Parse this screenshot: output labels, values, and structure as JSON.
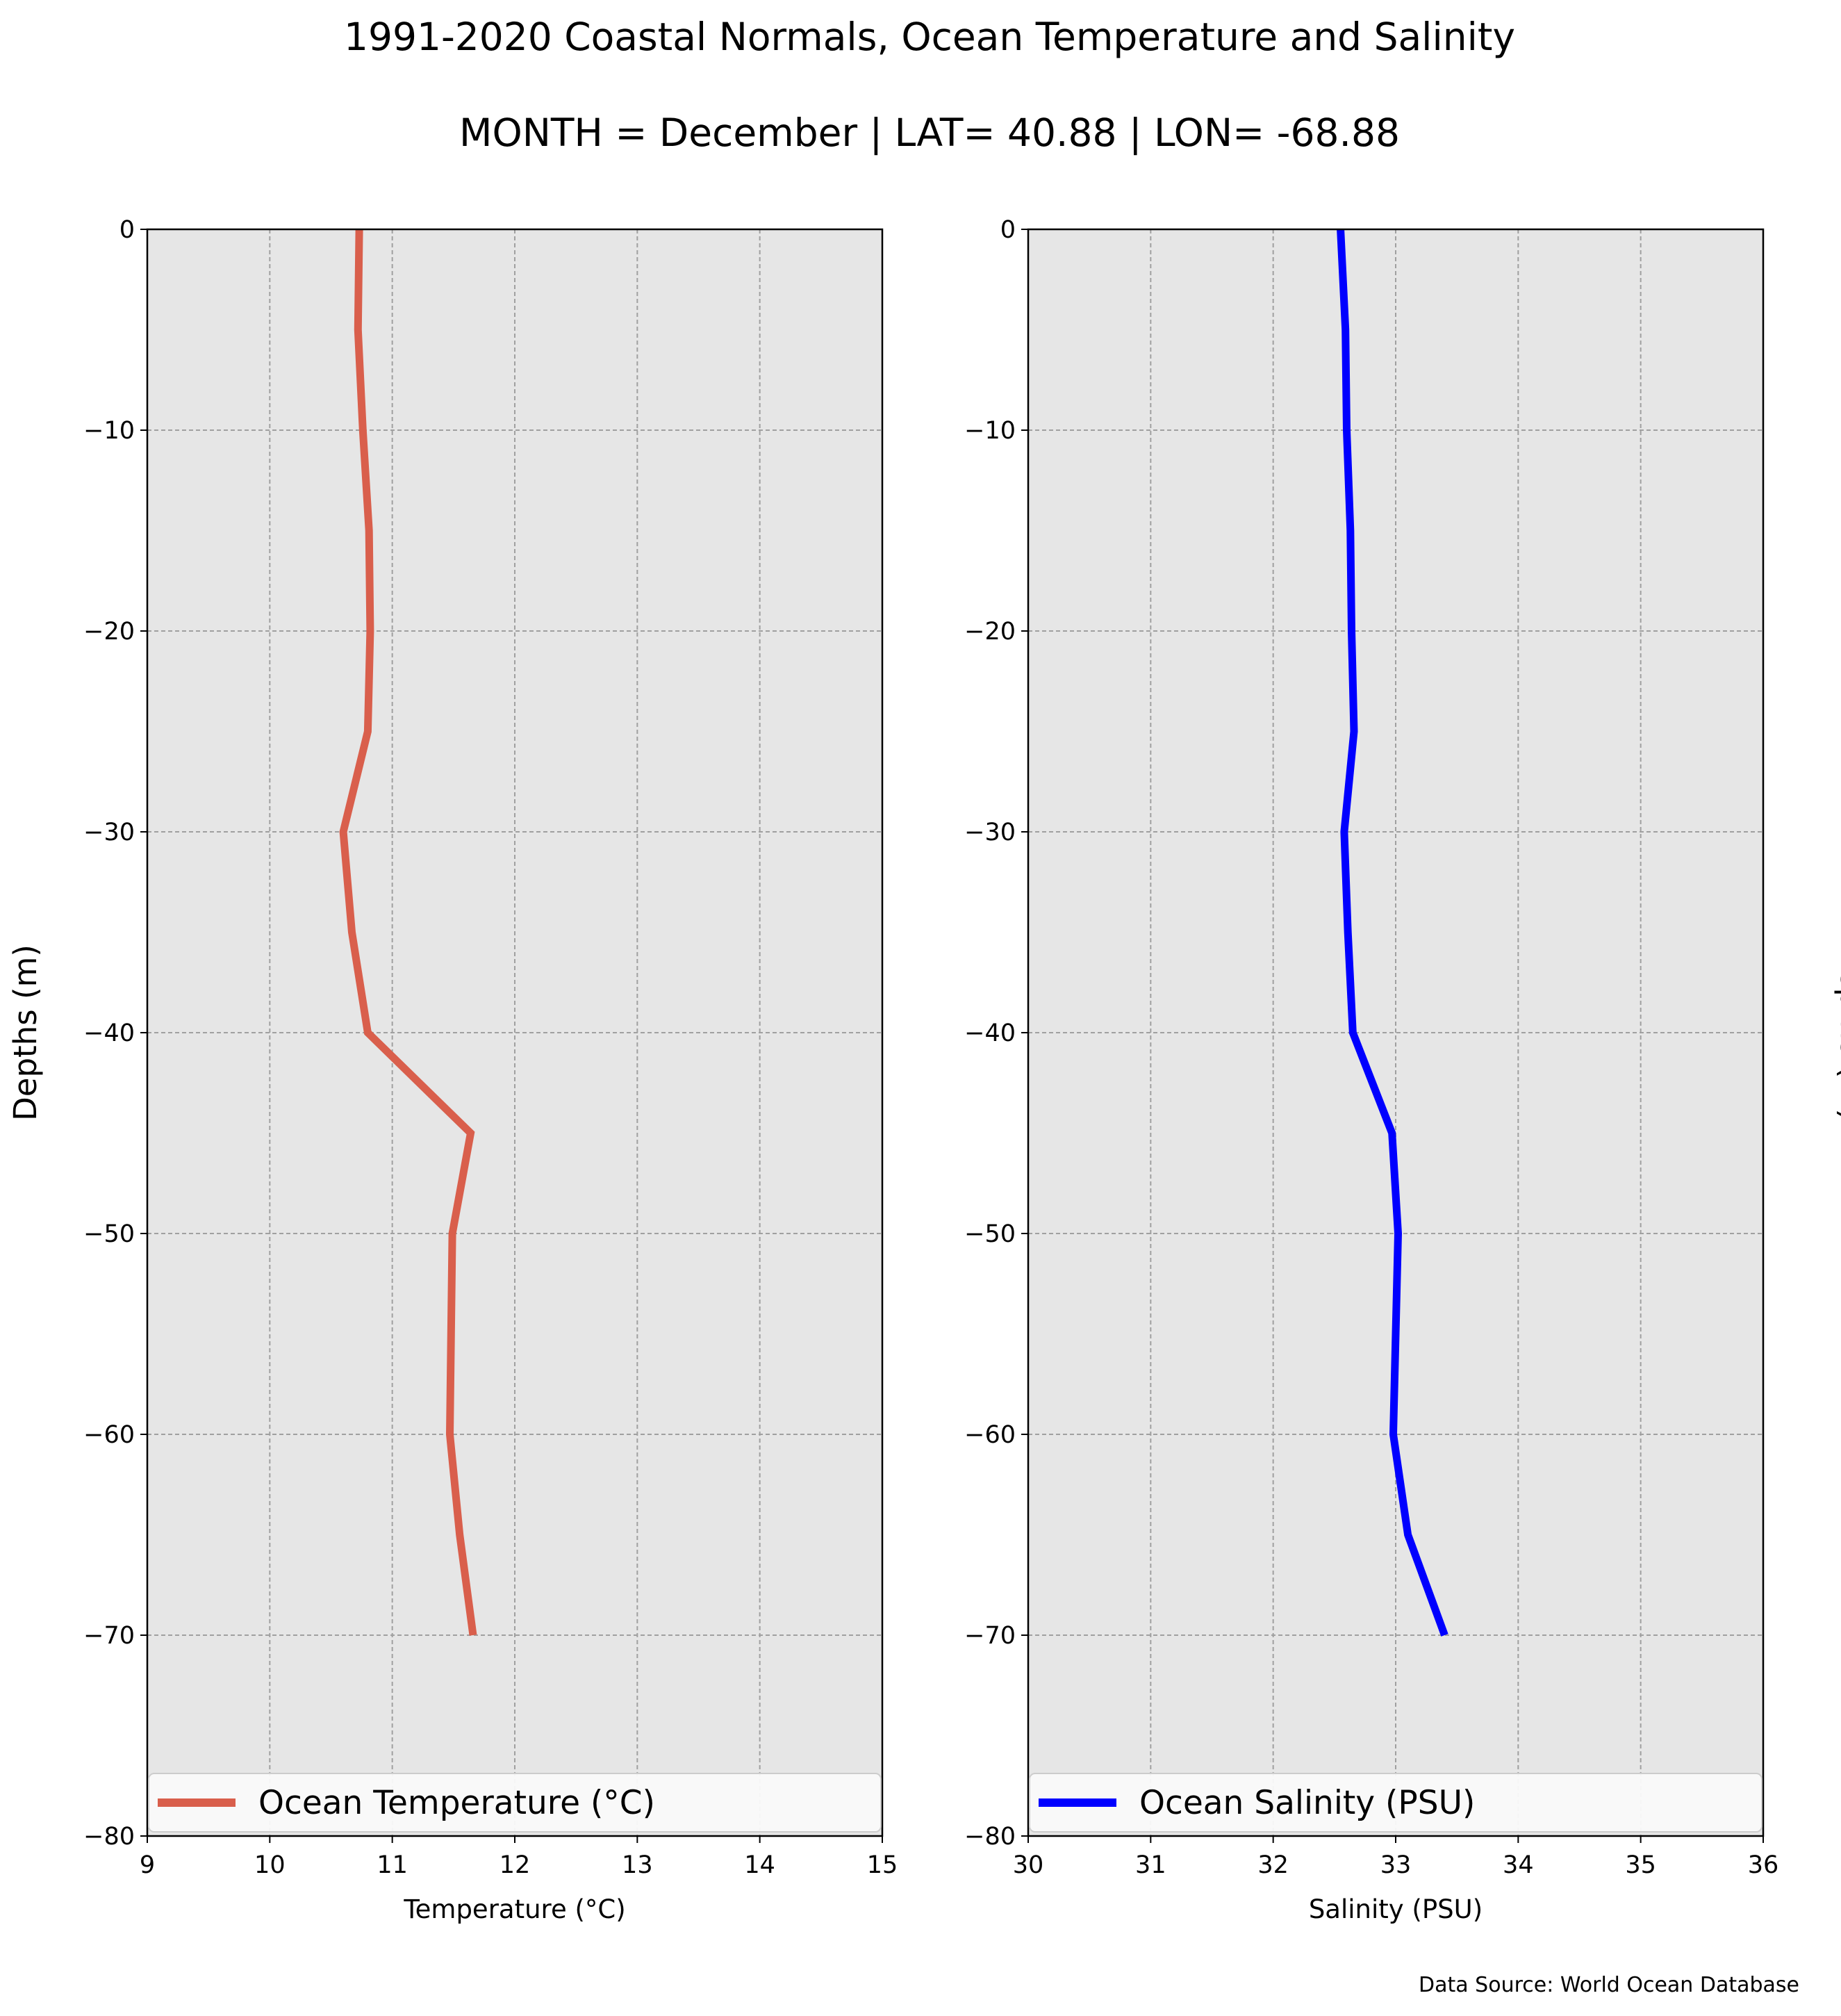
{
  "figure": {
    "title": "1991-2020 Coastal Normals, Ocean Temperature and Salinity",
    "subtitle": "MONTH = December | LAT= 40.88 | LON= -68.88",
    "source": "Data Source: World Ocean Database"
  },
  "chart_data": [
    {
      "type": "line",
      "orientation": "vertical-profile",
      "xlabel": "Temperature ($^\\circ$C)",
      "xlabel_display": "Temperature (°C)",
      "ylabel": "Depths (m)",
      "ylabel_position": "left",
      "xlim": [
        9,
        15
      ],
      "ylim": [
        -80,
        0
      ],
      "xticks": [
        "9",
        "10",
        "11",
        "12",
        "13",
        "14",
        "15"
      ],
      "yticks": [
        "0",
        "−10",
        "−20",
        "−30",
        "−40",
        "−50",
        "−60",
        "−70",
        "−80"
      ],
      "grid": true,
      "legend_placement": "lower center",
      "series": [
        {
          "name": "Ocean Temperature (°C)",
          "color": "#d95f4c",
          "x": [
            10.73,
            10.72,
            10.76,
            10.81,
            10.82,
            10.8,
            10.6,
            10.67,
            10.8,
            11.64,
            11.49,
            11.48,
            11.47,
            11.55,
            11.66
          ],
          "y": [
            0,
            -5,
            -10,
            -15,
            -20,
            -25,
            -30,
            -35,
            -40,
            -45,
            -50,
            -55,
            -60,
            -65,
            -70
          ]
        }
      ]
    },
    {
      "type": "line",
      "orientation": "vertical-profile",
      "xlabel": "Salinity (PSU)",
      "ylabel": "Depths (m)",
      "ylabel_position": "right",
      "xlim": [
        30,
        36
      ],
      "ylim": [
        -80,
        0
      ],
      "xticks": [
        "30",
        "31",
        "32",
        "33",
        "34",
        "35",
        "36"
      ],
      "yticks": [
        "0",
        "−10",
        "−20",
        "−30",
        "−40",
        "−50",
        "−60",
        "−70",
        "−80"
      ],
      "grid": true,
      "legend_placement": "lower center",
      "series": [
        {
          "name": "Ocean Salinity (PSU)",
          "color": "#0000ff",
          "x": [
            32.55,
            32.59,
            32.6,
            32.63,
            32.64,
            32.66,
            32.58,
            32.61,
            32.65,
            32.97,
            33.02,
            33.0,
            32.98,
            33.1,
            33.4
          ],
          "y": [
            0,
            -5,
            -10,
            -15,
            -20,
            -25,
            -30,
            -35,
            -40,
            -45,
            -50,
            -55,
            -60,
            -65,
            -70
          ]
        }
      ]
    }
  ]
}
